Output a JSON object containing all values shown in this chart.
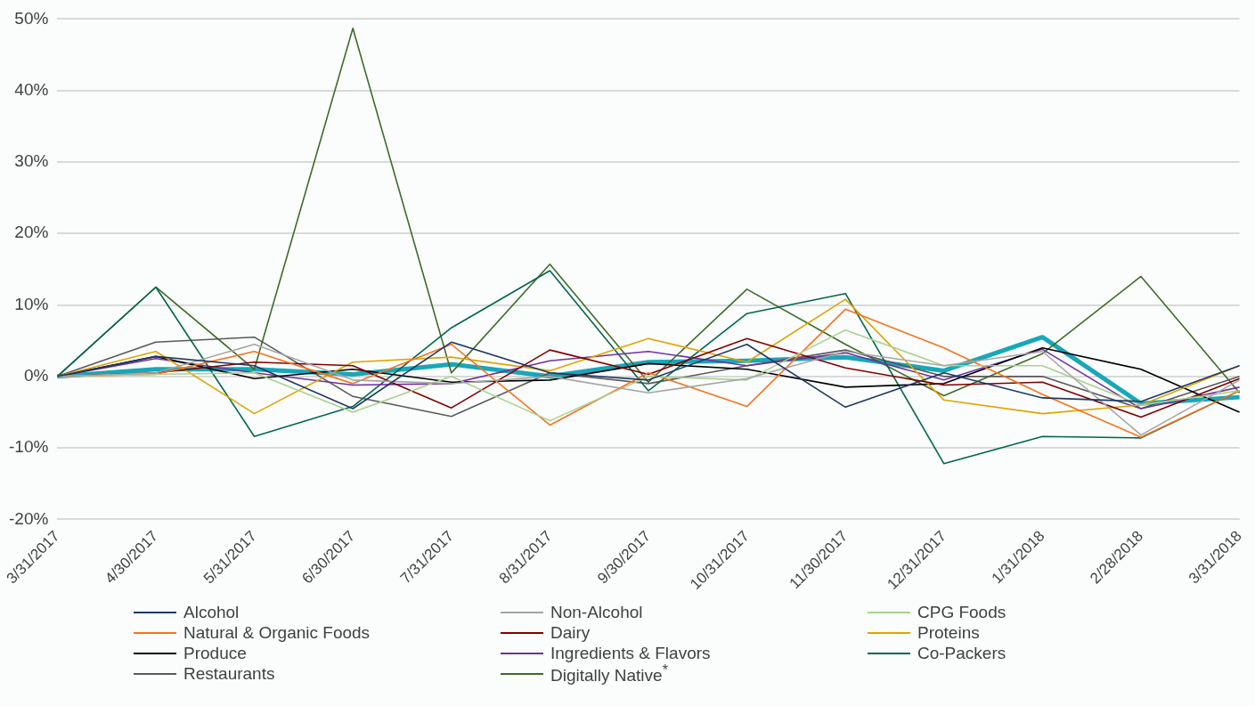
{
  "chart_data": {
    "type": "line",
    "categories": [
      "3/31/2017",
      "4/30/2017",
      "5/31/2017",
      "6/30/2017",
      "7/31/2017",
      "8/31/2017",
      "9/30/2017",
      "10/31/2017",
      "11/30/2017",
      "12/31/2017",
      "1/31/2018",
      "2/28/2018",
      "3/31/2018"
    ],
    "ylim": [
      -20,
      50
    ],
    "yticks": [
      {
        "value": -20,
        "label": "-20%"
      },
      {
        "value": -10,
        "label": "-10%"
      },
      {
        "value": 0,
        "label": "0%"
      },
      {
        "value": 10,
        "label": "10%"
      },
      {
        "value": 20,
        "label": "20%"
      },
      {
        "value": 30,
        "label": "30%"
      },
      {
        "value": 40,
        "label": "40%"
      },
      {
        "value": 50,
        "label": "50%"
      }
    ],
    "grid": "y",
    "legend": "bottom",
    "marker": "none",
    "line_style": "solid",
    "series": [
      {
        "name": "Alcohol",
        "color": "#203864",
        "values": [
          0,
          2.8,
          1.5,
          -4.5,
          4.8,
          0.5,
          -0.5,
          4.5,
          -4.3,
          0.5,
          -3,
          -3.5,
          1.5
        ]
      },
      {
        "name": "Non-Alcohol",
        "color": "#a5a5a5",
        "values": [
          0,
          0.5,
          4.5,
          -0.5,
          -1,
          0,
          -2.3,
          -0.3,
          3.5,
          1.5,
          3.5,
          -8.2,
          -0.5
        ]
      },
      {
        "name": "CPG Foods",
        "color": "#a9d18e",
        "values": [
          0,
          0.3,
          0.5,
          -5,
          0,
          -6.2,
          0,
          -0.5,
          6.5,
          1.5,
          1.5,
          -4,
          -2
        ]
      },
      {
        "name": "Natural & Organic Foods",
        "color": "#f7731f",
        "values": [
          0,
          0.3,
          3.5,
          -1,
          4.5,
          -6.8,
          0.5,
          -4.2,
          9.4,
          4,
          -2.5,
          -8.5,
          -2
        ]
      },
      {
        "name": "Dairy",
        "color": "#800000",
        "values": [
          0,
          0.5,
          2,
          1.5,
          -4.4,
          3.7,
          0.3,
          5.3,
          1.2,
          -1.2,
          -0.8,
          -5.7,
          -0.3
        ]
      },
      {
        "name": "Proteins",
        "color": "#e0a300",
        "values": [
          0,
          3.5,
          -5.2,
          2,
          2.7,
          0.8,
          5.3,
          2,
          10.8,
          -3.3,
          -5.2,
          -4,
          1.5
        ]
      },
      {
        "name": "Produce",
        "color": "#000000",
        "values": [
          0,
          2.8,
          -0.3,
          1,
          -0.8,
          -0.5,
          1.8,
          1,
          -1.5,
          -1,
          4,
          1,
          -5
        ]
      },
      {
        "name": "Ingredients & Flavors",
        "color": "#7030a0",
        "values": [
          0,
          2.5,
          0.5,
          -1.2,
          -1,
          2.2,
          3.5,
          1.5,
          3.3,
          -0.5,
          3.8,
          -4.5,
          -1.5
        ]
      },
      {
        "name": "Co-Packers",
        "color": "#00664f",
        "values": [
          0,
          12.5,
          -8.4,
          -4.2,
          6.8,
          14.8,
          -2,
          8.8,
          11.6,
          -12.2,
          -8.4,
          -8.6,
          -2
        ]
      },
      {
        "name": "Restaurants",
        "color": "#595959",
        "values": [
          0,
          4.8,
          5.5,
          -2.8,
          -5.6,
          0.5,
          -1,
          1.5,
          3.7,
          0,
          0,
          -4.5,
          0
        ]
      },
      {
        "name": "Digitally Native$^{*}$",
        "color": "#3f6b25",
        "values": [
          0,
          12.5,
          1,
          48.7,
          0.5,
          15.7,
          -0.8,
          12.2,
          4.5,
          -2.7,
          3.2,
          14,
          -2.3
        ]
      },
      {
        "color": "#17a7b9",
        "values": [
          0,
          1,
          1,
          0.3,
          1.7,
          0,
          2,
          2.2,
          2.7,
          0.8,
          5.5,
          -3.8,
          -2.9
        ]
      }
    ]
  }
}
